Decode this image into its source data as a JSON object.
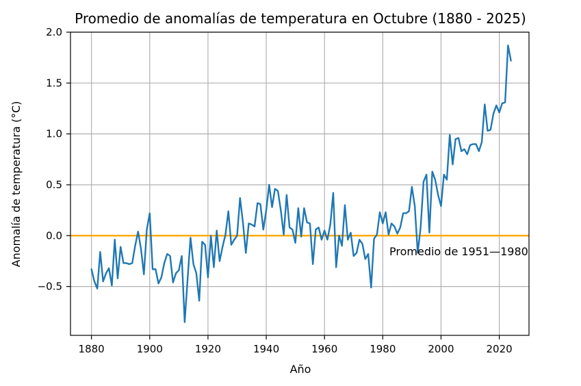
{
  "chart_data": {
    "type": "line",
    "title": "Promedio de anomalías de temperatura en Octubre (1880 - 2025)",
    "xlabel": "Año",
    "ylabel": "Anomalía de temperatura (°C)",
    "xlim": [
      1872.8,
      2030.2
    ],
    "ylim": [
      -0.98,
      2.0
    ],
    "grid": true,
    "x_ticks": [
      1880,
      1900,
      1920,
      1940,
      1960,
      1980,
      2000,
      2020
    ],
    "y_ticks": [
      -0.5,
      0.0,
      0.5,
      1.0,
      1.5,
      2.0
    ],
    "x_tick_labels": [
      "1880",
      "1900",
      "1920",
      "1940",
      "1960",
      "1980",
      "2000",
      "2020"
    ],
    "y_tick_labels": [
      "−0.5",
      "0.0",
      "0.5",
      "1.0",
      "1.5",
      "2.0"
    ],
    "series": [
      {
        "color": "#1f77b4",
        "x": [
          1880,
          1881,
          1882,
          1883,
          1884,
          1885,
          1886,
          1887,
          1888,
          1889,
          1890,
          1891,
          1892,
          1893,
          1894,
          1895,
          1896,
          1897,
          1898,
          1899,
          1900,
          1901,
          1902,
          1903,
          1904,
          1905,
          1906,
          1907,
          1908,
          1909,
          1910,
          1911,
          1912,
          1913,
          1914,
          1915,
          1916,
          1917,
          1918,
          1919,
          1920,
          1921,
          1922,
          1923,
          1924,
          1925,
          1926,
          1927,
          1928,
          1929,
          1930,
          1931,
          1932,
          1933,
          1934,
          1935,
          1936,
          1937,
          1938,
          1939,
          1940,
          1941,
          1942,
          1943,
          1944,
          1945,
          1946,
          1947,
          1948,
          1949,
          1950,
          1951,
          1952,
          1953,
          1954,
          1955,
          1956,
          1957,
          1958,
          1959,
          1960,
          1961,
          1962,
          1963,
          1964,
          1965,
          1966,
          1967,
          1968,
          1969,
          1970,
          1971,
          1972,
          1973,
          1974,
          1975,
          1976,
          1977,
          1978,
          1979,
          1980,
          1981,
          1982,
          1983,
          1984,
          1985,
          1986,
          1987,
          1988,
          1989,
          1990,
          1991,
          1992,
          1993,
          1994,
          1995,
          1996,
          1997,
          1998,
          1999,
          2000,
          2001,
          2002,
          2003,
          2004,
          2005,
          2006,
          2007,
          2008,
          2009,
          2010,
          2011,
          2012,
          2013,
          2014,
          2015,
          2016,
          2017,
          2018,
          2019,
          2020,
          2021,
          2022,
          2023,
          2024
        ],
        "values": [
          -0.33,
          -0.45,
          -0.52,
          -0.16,
          -0.45,
          -0.37,
          -0.32,
          -0.49,
          -0.04,
          -0.42,
          -0.11,
          -0.27,
          -0.27,
          -0.28,
          -0.27,
          -0.1,
          0.04,
          -0.13,
          -0.38,
          0.06,
          0.22,
          -0.33,
          -0.33,
          -0.47,
          -0.41,
          -0.27,
          -0.18,
          -0.2,
          -0.46,
          -0.37,
          -0.34,
          -0.2,
          -0.85,
          -0.43,
          -0.02,
          -0.28,
          -0.37,
          -0.64,
          -0.06,
          -0.09,
          -0.41,
          0.0,
          -0.31,
          0.05,
          -0.25,
          -0.11,
          0.01,
          0.24,
          -0.09,
          -0.04,
          0.0,
          0.37,
          0.13,
          -0.17,
          0.12,
          0.11,
          0.09,
          0.32,
          0.31,
          0.06,
          0.25,
          0.5,
          0.28,
          0.46,
          0.44,
          0.25,
          0.01,
          0.4,
          0.08,
          0.06,
          -0.07,
          0.27,
          -0.01,
          0.27,
          0.13,
          0.12,
          -0.28,
          0.06,
          0.08,
          -0.04,
          0.05,
          -0.04,
          0.11,
          0.42,
          -0.31,
          0.0,
          -0.1,
          0.3,
          -0.04,
          0.03,
          -0.2,
          -0.17,
          -0.04,
          -0.08,
          -0.23,
          -0.18,
          -0.51,
          -0.03,
          0.01,
          0.23,
          0.12,
          0.23,
          0.01,
          0.12,
          0.09,
          0.02,
          0.08,
          0.22,
          0.22,
          0.24,
          0.48,
          0.29,
          -0.17,
          0.08,
          0.53,
          0.6,
          0.03,
          0.63,
          0.55,
          0.4,
          0.29,
          0.6,
          0.55,
          0.99,
          0.7,
          0.95,
          0.96,
          0.83,
          0.85,
          0.8,
          0.89,
          0.9,
          0.9,
          0.83,
          0.92,
          1.29,
          1.03,
          1.04,
          1.2,
          1.28,
          1.21,
          1.3,
          1.31,
          1.87,
          1.72
        ]
      }
    ],
    "reference_line": {
      "y": 0.0,
      "color": "#ffa500",
      "label": "Promedio de 1951—1980"
    }
  }
}
